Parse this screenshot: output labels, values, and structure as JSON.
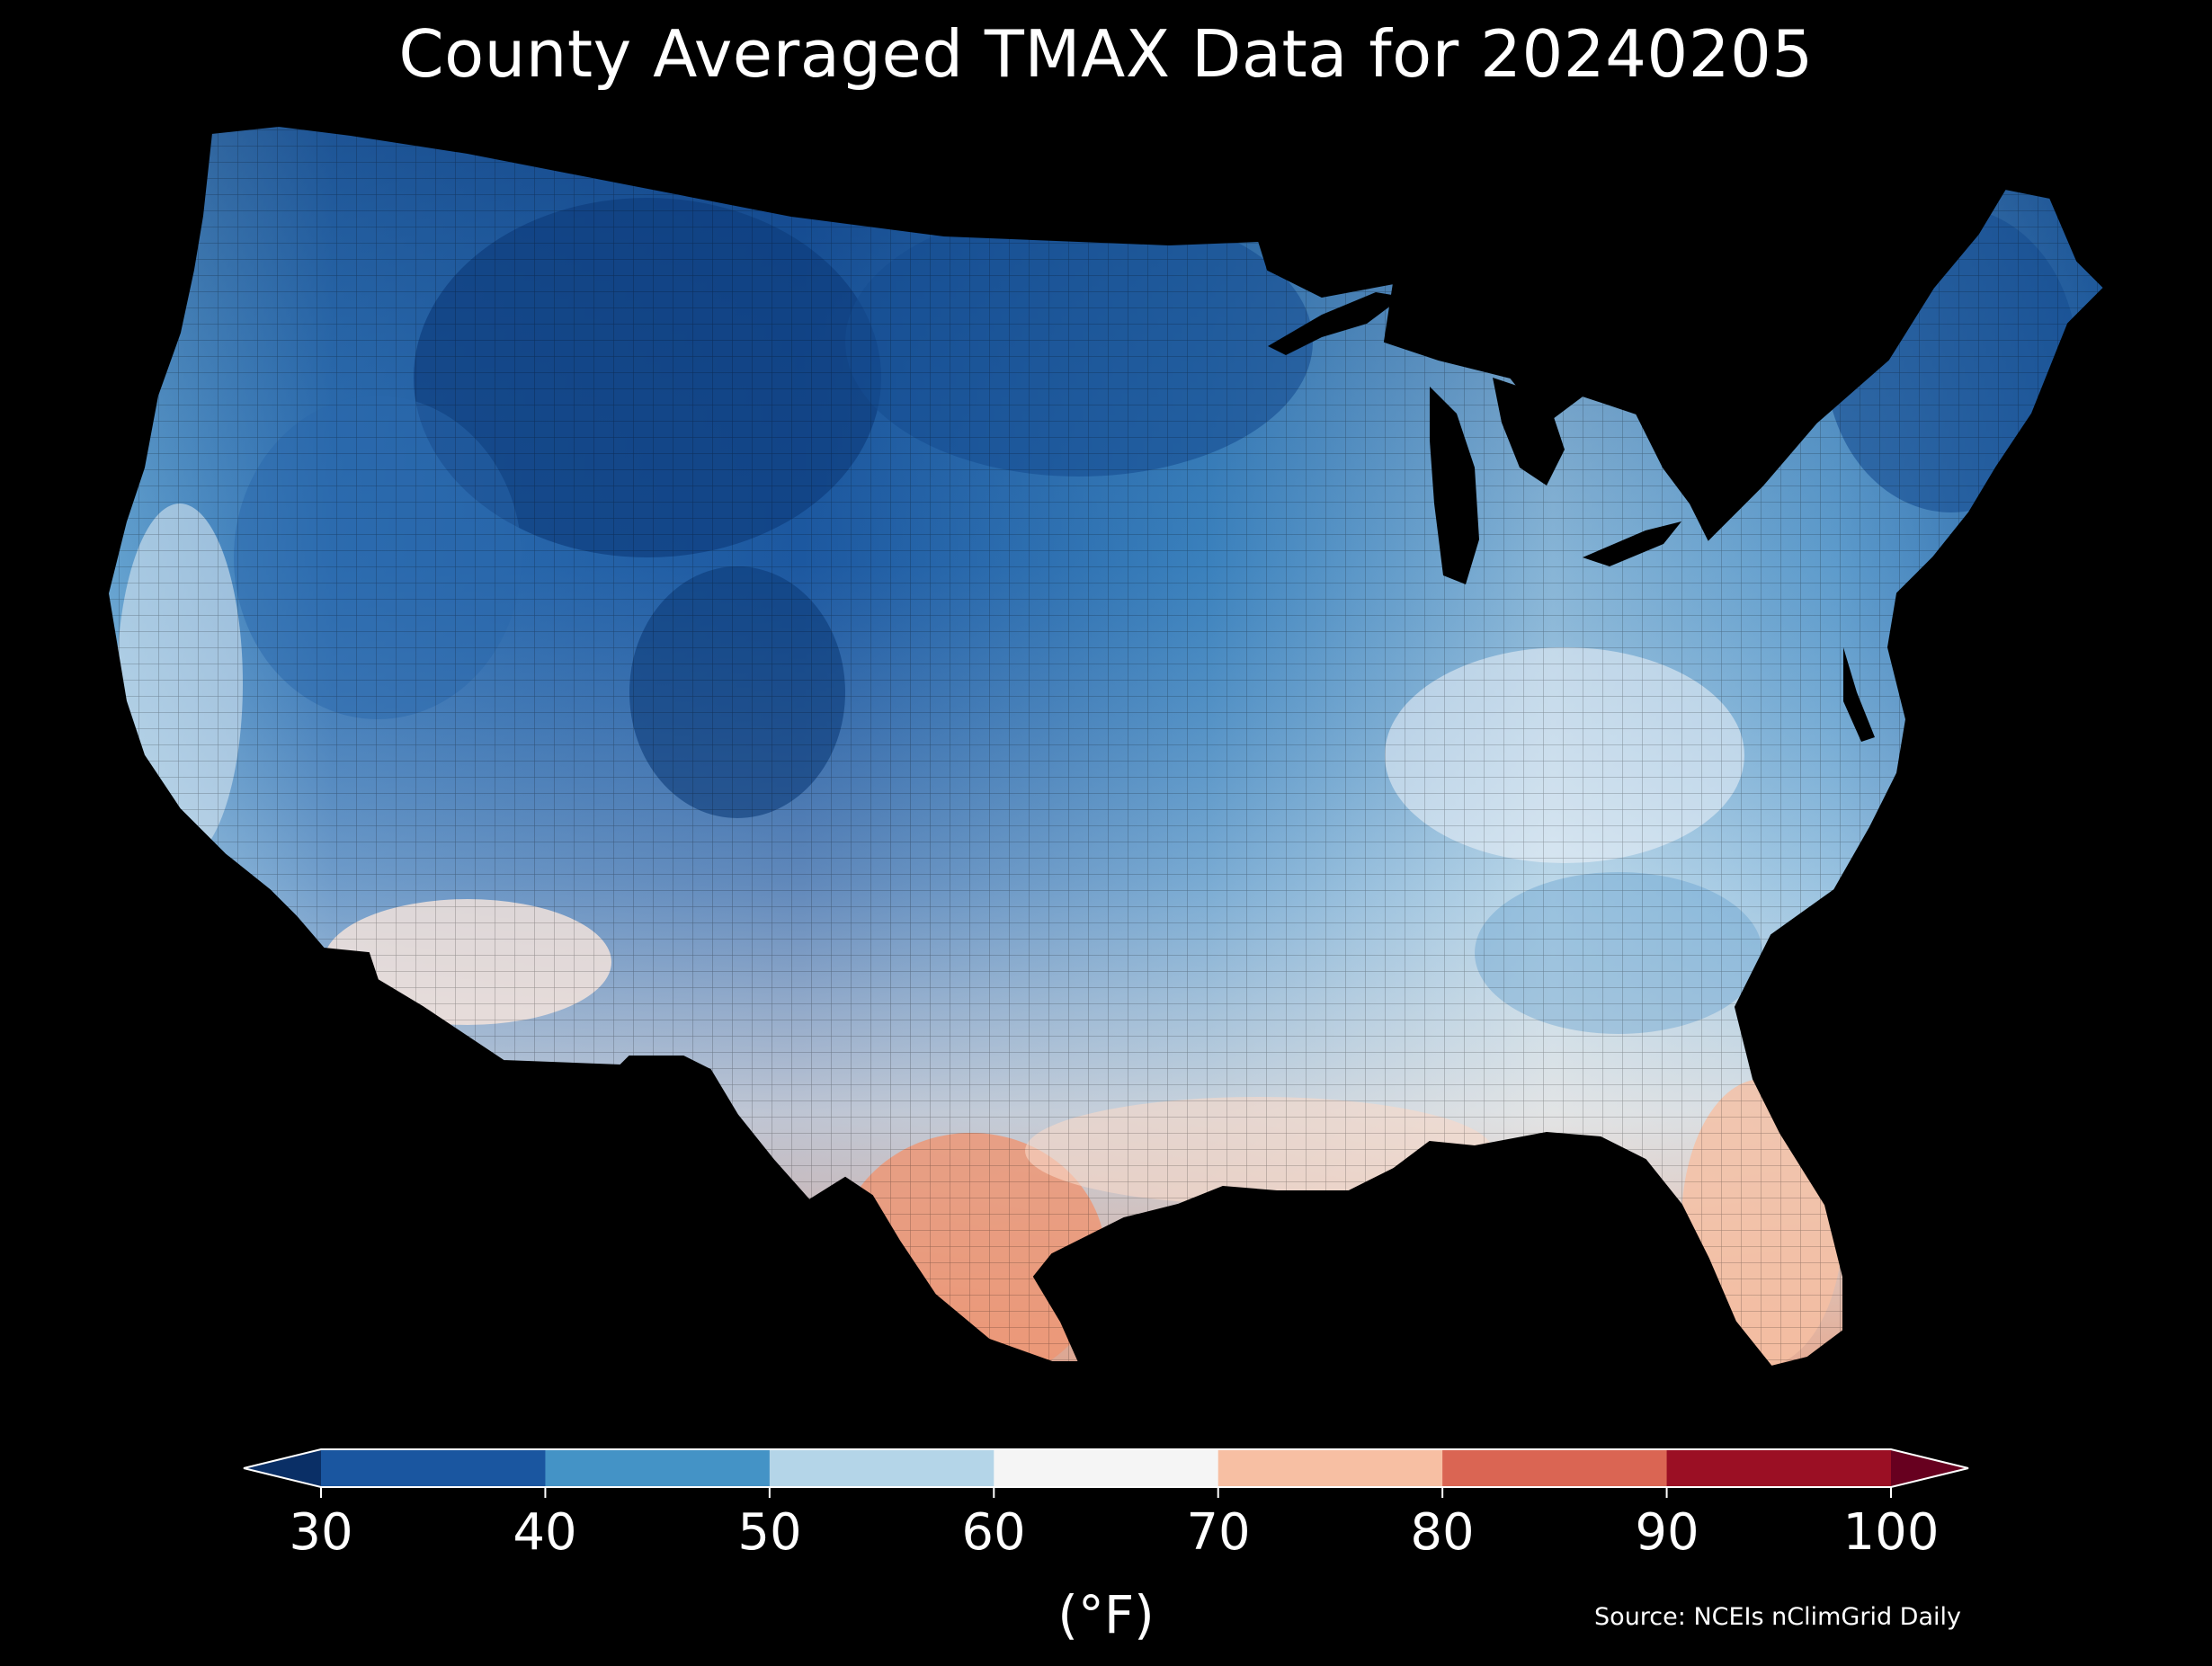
{
  "title": "County Averaged TMAX Data for 20240205",
  "colorbar": {
    "ticks": [
      "30",
      "40",
      "50",
      "60",
      "70",
      "80",
      "90",
      "100"
    ],
    "unit": "(°F)",
    "extend": "both",
    "bins": [
      {
        "range": [
          30,
          40
        ],
        "color": "#1a56a0"
      },
      {
        "range": [
          40,
          50
        ],
        "color": "#4493c6"
      },
      {
        "range": [
          50,
          60
        ],
        "color": "#b4d5e8"
      },
      {
        "range": [
          60,
          70
        ],
        "color": "#f5f5f5"
      },
      {
        "range": [
          70,
          80
        ],
        "color": "#f7bfa3"
      },
      {
        "range": [
          80,
          90
        ],
        "color": "#da6553"
      },
      {
        "range": [
          90,
          100
        ],
        "color": "#9b0f24"
      }
    ],
    "under_color": "#0a2f66",
    "over_color": "#67001f"
  },
  "source": "Source: NCEIs nClimGrid Daily",
  "map": {
    "region": "Contiguous United States",
    "variable": "TMAX",
    "date": "20240205",
    "background": "#000000",
    "regional_pattern": [
      {
        "region": "Northern Rockies / Northern Plains",
        "range_f": [
          30,
          40
        ]
      },
      {
        "region": "Great Lakes / Ohio Valley / Appalachians",
        "range_f": [
          45,
          60
        ]
      },
      {
        "region": "Southwest deserts",
        "range_f": [
          60,
          75
        ]
      },
      {
        "region": "South Texas",
        "range_f": [
          75,
          85
        ]
      },
      {
        "region": "Florida peninsula",
        "range_f": [
          70,
          80
        ]
      },
      {
        "region": "New England / Maine",
        "range_f": [
          30,
          40
        ]
      }
    ]
  }
}
